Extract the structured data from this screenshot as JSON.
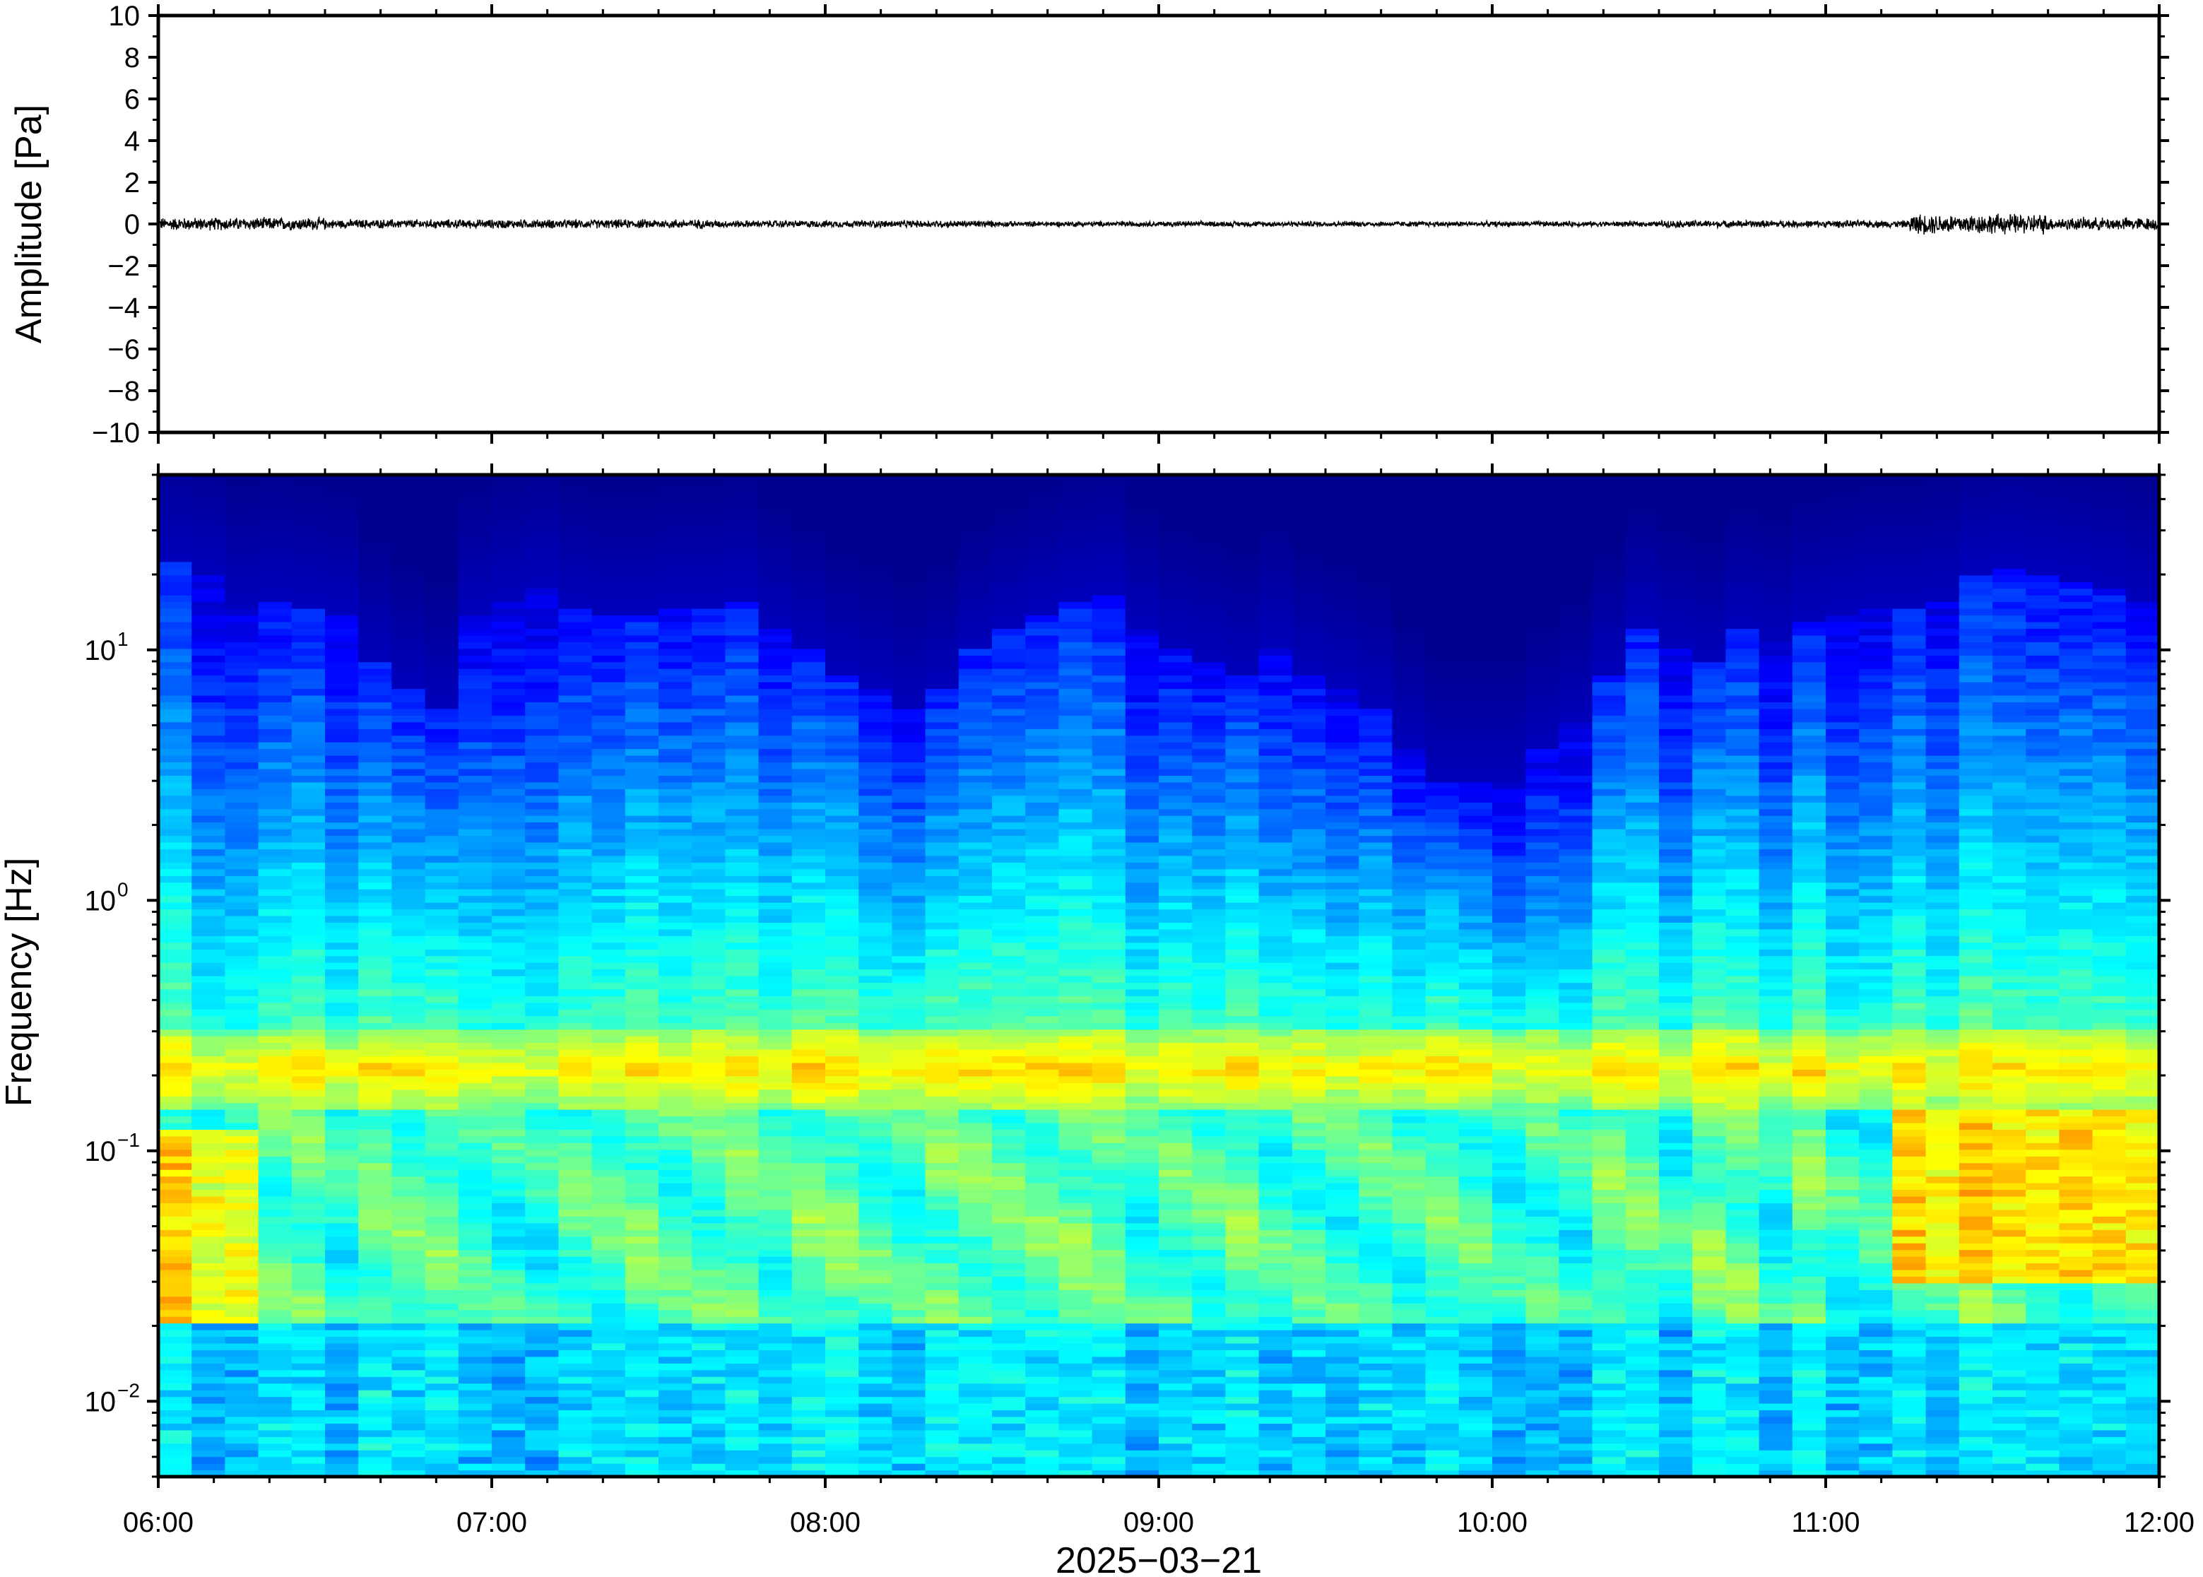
{
  "chart_data": [
    {
      "type": "line",
      "ylabel": "Amplitude [Pa]",
      "ylim": [
        -10,
        10
      ],
      "yticks": [
        -10,
        -8,
        -6,
        -4,
        -2,
        0,
        2,
        4,
        6,
        8,
        10
      ],
      "ytick_labels": [
        "−10",
        "−8",
        "−6",
        "−4",
        "−2",
        "0",
        "2",
        "4",
        "6",
        "8",
        "10"
      ],
      "xlim": [
        "06:00",
        "12:00"
      ],
      "grid": false,
      "series": [
        {
          "color": "#000000",
          "segments": [
            {
              "start": "06:00",
              "end": "06:30",
              "amplitude": 0.35
            },
            {
              "start": "06:30",
              "end": "07:00",
              "amplitude": 0.25
            },
            {
              "start": "07:00",
              "end": "07:40",
              "amplitude": 0.25
            },
            {
              "start": "07:40",
              "end": "08:30",
              "amplitude": 0.2
            },
            {
              "start": "08:30",
              "end": "10:30",
              "amplitude": 0.15
            },
            {
              "start": "10:30",
              "end": "11:15",
              "amplitude": 0.2
            },
            {
              "start": "11:15",
              "end": "11:40",
              "amplitude": 0.55
            },
            {
              "start": "11:40",
              "end": "12:00",
              "amplitude": 0.35
            }
          ]
        }
      ]
    },
    {
      "type": "heatmap",
      "ylabel": "Frequency [Hz]",
      "xlabel": "2025−03−21",
      "yscale": "log",
      "ylim": [
        0.005,
        50
      ],
      "yticks": [
        0.01,
        0.1,
        1,
        10
      ],
      "ytick_labels": [
        {
          "base": "10",
          "exp": "−2"
        },
        {
          "base": "10",
          "exp": "−1"
        },
        {
          "base": "10",
          "exp": "0"
        },
        {
          "base": "10",
          "exp": "1"
        }
      ],
      "xticks": [
        "06:00",
        "07:00",
        "08:00",
        "09:00",
        "10:00",
        "11:00",
        "12:00"
      ],
      "xlim": [
        "06:00",
        "12:00"
      ],
      "colormap": "jet",
      "colormap_colors": [
        "#00008f",
        "#0000ff",
        "#0080ff",
        "#00ffff",
        "#80ff80",
        "#ffff00",
        "#ff8000",
        "#ff0000",
        "#800000"
      ],
      "time_columns": 60,
      "upper_edge_hz": [
        22,
        20,
        15,
        16,
        15,
        14,
        9,
        7,
        6,
        14,
        16,
        18,
        15,
        14,
        14,
        15,
        15,
        16,
        12,
        10,
        8,
        7,
        6,
        7,
        10,
        12,
        14,
        16,
        17,
        12,
        10,
        9,
        8,
        10,
        8,
        7,
        6,
        4,
        3,
        3,
        3,
        4,
        5,
        8,
        12,
        10,
        9,
        12,
        11,
        13,
        14,
        15,
        15,
        16,
        20,
        21,
        20,
        19,
        18,
        16
      ],
      "microseism_band_hz": [
        0.15,
        0.3
      ],
      "low_freq_warm_hz": [
        0.02,
        0.12
      ],
      "warm_periods": [
        {
          "start": "06:00",
          "end": "06:15",
          "band_hz": [
            0.02,
            0.12
          ]
        },
        {
          "start": "11:10",
          "end": "12:00",
          "band_hz": [
            0.03,
            0.15
          ]
        }
      ],
      "grid": false
    }
  ]
}
